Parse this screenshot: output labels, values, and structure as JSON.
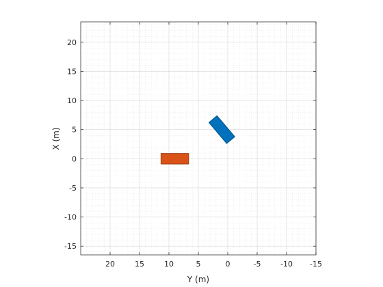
{
  "chart_data": {
    "type": "scatter",
    "title": "",
    "xlabel": "Y (m)",
    "ylabel": "X (m)",
    "xlim": [
      25,
      -15
    ],
    "ylim": [
      -16.5,
      23.5
    ],
    "x_axis_reversed": true,
    "xticks": [
      20,
      15,
      10,
      5,
      0,
      -5,
      -10,
      -15
    ],
    "yticks": [
      20,
      15,
      10,
      5,
      0,
      -5,
      -10,
      -15
    ],
    "grid": true,
    "minor_grid": true,
    "shapes": [
      {
        "color": "#D95319",
        "edge_color": "#A03C10",
        "center_x": 0.0,
        "center_y": 9.0,
        "length": 1.8,
        "width": 4.7,
        "angle_deg": 0
      },
      {
        "color": "#0072BD",
        "edge_color": "#004F85",
        "center_x": 5.0,
        "center_y": 1.0,
        "length": 4.7,
        "width": 1.8,
        "angle_deg": 40
      }
    ]
  }
}
